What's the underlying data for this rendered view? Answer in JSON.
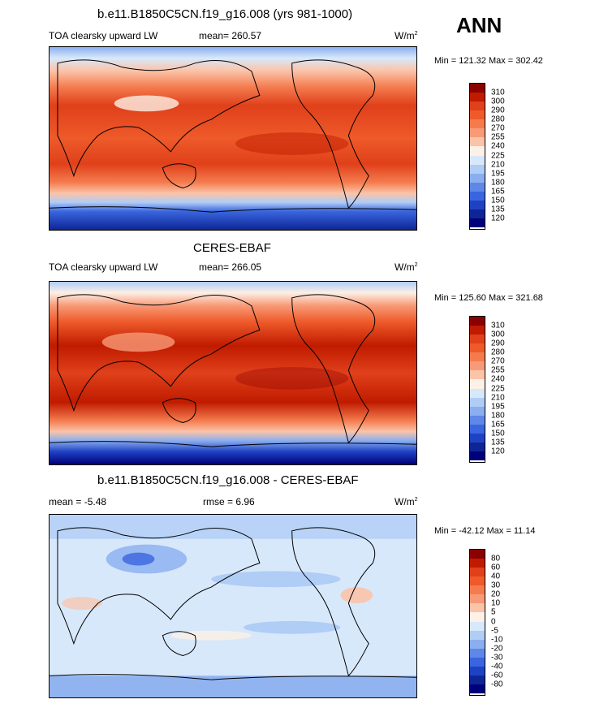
{
  "header": {
    "season": "ANN"
  },
  "panels": [
    {
      "title": "b.e11.B1850C5CN.f19_g16.008 (yrs 981-1000)",
      "left_label": "TOA clearsky upward LW",
      "center_label": "mean= 260.57",
      "units": "W/m",
      "units_sup": "2",
      "minmax": "Min = 121.32 Max = 302.42",
      "colorbar": {
        "labels": [
          "310",
          "300",
          "290",
          "280",
          "270",
          "255",
          "240",
          "225",
          "210",
          "195",
          "180",
          "165",
          "150",
          "135",
          "120"
        ],
        "colors": [
          "#8b0000",
          "#c01b00",
          "#e0401a",
          "#ee5a2a",
          "#f47b4e",
          "#f89a77",
          "#fbc3a8",
          "#fdf0e6",
          "#d8e8fb",
          "#b0cdf6",
          "#8aaef0",
          "#5f87e8",
          "#3a65de",
          "#1f42c4",
          "#0e2596",
          "#00007a"
        ]
      }
    },
    {
      "title": "CERES-EBAF",
      "left_label": "TOA clearsky upward LW",
      "center_label": "mean= 266.05",
      "units": "W/m",
      "units_sup": "2",
      "minmax": "Min = 125.60 Max = 321.68",
      "colorbar": {
        "labels": [
          "310",
          "300",
          "290",
          "280",
          "270",
          "255",
          "240",
          "225",
          "210",
          "195",
          "180",
          "165",
          "150",
          "135",
          "120"
        ],
        "colors": [
          "#8b0000",
          "#c01b00",
          "#e0401a",
          "#ee5a2a",
          "#f47b4e",
          "#f89a77",
          "#fbc3a8",
          "#fdf0e6",
          "#d8e8fb",
          "#b0cdf6",
          "#8aaef0",
          "#5f87e8",
          "#3a65de",
          "#1f42c4",
          "#0e2596",
          "#00007a"
        ]
      }
    },
    {
      "title": "b.e11.B1850C5CN.f19_g16.008 - CERES-EBAF",
      "left_label": "mean =  -5.48",
      "center_label": "rmse =   6.96",
      "units": "W/m",
      "units_sup": "2",
      "minmax": "Min = -42.12 Max =  11.14",
      "colorbar": {
        "labels": [
          "80",
          "60",
          "40",
          "30",
          "20",
          "10",
          "5",
          "0",
          "-5",
          "-10",
          "-20",
          "-30",
          "-40",
          "-60",
          "-80"
        ],
        "colors": [
          "#8b0000",
          "#c01b00",
          "#e0401a",
          "#ee5a2a",
          "#f47b4e",
          "#f89a77",
          "#fbc3a8",
          "#fdf0e6",
          "#d8e8fb",
          "#b0cdf6",
          "#8aaef0",
          "#5f87e8",
          "#3a65de",
          "#1f42c4",
          "#0e2596",
          "#00007a"
        ]
      }
    }
  ]
}
